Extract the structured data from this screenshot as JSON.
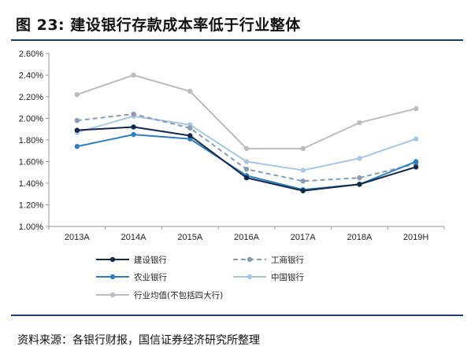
{
  "header": {
    "title": "图 23:  建设银行存款成本率低于行业整体"
  },
  "source": "资料来源：各银行财报，国信证券经济研究所整理",
  "chart_data": {
    "type": "line",
    "categories": [
      "2013A",
      "2014A",
      "2015A",
      "2016A",
      "2017A",
      "2018A",
      "2019H"
    ],
    "y_ticks": [
      "1.00%",
      "1.20%",
      "1.40%",
      "1.60%",
      "1.80%",
      "2.00%",
      "2.20%",
      "2.40%",
      "2.60%"
    ],
    "ylim": [
      1.0,
      2.6
    ],
    "unit": "%",
    "grid": false,
    "legend_position": "bottom",
    "series": [
      {
        "name": "建设银行",
        "color": "#14284a",
        "dashed": false,
        "values": [
          1.89,
          1.92,
          1.84,
          1.45,
          1.33,
          1.39,
          1.55
        ]
      },
      {
        "name": "工商银行",
        "color": "#8a9bb2",
        "dashed": true,
        "values": [
          1.98,
          2.04,
          1.91,
          1.53,
          1.42,
          1.45,
          1.58
        ]
      },
      {
        "name": "农业银行",
        "color": "#2b7fc1",
        "dashed": false,
        "values": [
          1.74,
          1.85,
          1.81,
          1.47,
          1.34,
          1.39,
          1.6
        ]
      },
      {
        "name": "中国银行",
        "color": "#a6c8e6",
        "dashed": false,
        "values": [
          1.87,
          2.02,
          1.94,
          1.6,
          1.52,
          1.63,
          1.81
        ]
      },
      {
        "name": "行业均值(不包括四大行)",
        "color": "#bdbdbd",
        "dashed": false,
        "values": [
          2.22,
          2.4,
          2.25,
          1.72,
          1.72,
          1.96,
          2.09
        ]
      }
    ]
  }
}
